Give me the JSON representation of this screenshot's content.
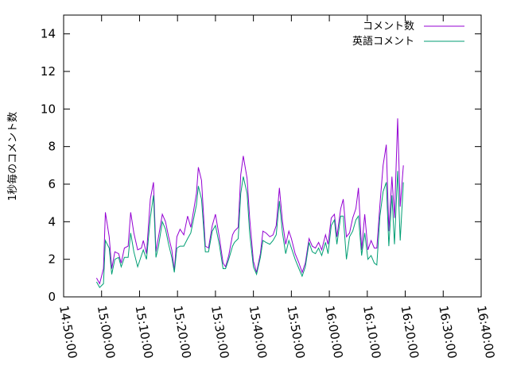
{
  "chart_data": {
    "type": "line",
    "title": "",
    "xlabel": "",
    "ylabel": "1秒毎のコメント数",
    "xlim": [
      "14:50:00",
      "16:40:00"
    ],
    "ylim": [
      0,
      15
    ],
    "x_ticks": [
      "14:50:00",
      "15:00:00",
      "15:10:00",
      "15:20:00",
      "15:30:00",
      "15:40:00",
      "15:50:00",
      "16:00:00",
      "16:10:00",
      "16:20:00",
      "16:30:00",
      "16:40:00"
    ],
    "y_ticks": [
      0,
      2,
      4,
      6,
      8,
      10,
      12,
      14
    ],
    "grid": false,
    "legend_position": "top-right",
    "series": [
      {
        "name": "コメント数",
        "color": "#9400d3",
        "points": [
          [
            "14:58:40",
            1.0
          ],
          [
            "14:59:30",
            0.7
          ],
          [
            "15:00:30",
            1.5
          ],
          [
            "15:01:00",
            4.5
          ],
          [
            "15:02:00",
            3.2
          ],
          [
            "15:02:40",
            1.5
          ],
          [
            "15:03:30",
            2.4
          ],
          [
            "15:04:30",
            2.3
          ],
          [
            "15:05:10",
            1.8
          ],
          [
            "15:06:00",
            2.6
          ],
          [
            "15:07:00",
            2.7
          ],
          [
            "15:07:40",
            4.5
          ],
          [
            "15:08:30",
            3.4
          ],
          [
            "15:09:30",
            2.5
          ],
          [
            "15:10:30",
            2.6
          ],
          [
            "15:11:00",
            3.0
          ],
          [
            "15:11:50",
            2.3
          ],
          [
            "15:12:50",
            5.2
          ],
          [
            "15:13:40",
            6.1
          ],
          [
            "15:14:20",
            2.4
          ],
          [
            "15:15:00",
            3.2
          ],
          [
            "15:16:00",
            4.4
          ],
          [
            "15:16:50",
            4.0
          ],
          [
            "15:17:40",
            3.2
          ],
          [
            "15:18:30",
            2.5
          ],
          [
            "15:19:10",
            1.4
          ],
          [
            "15:19:50",
            3.2
          ],
          [
            "15:20:40",
            3.6
          ],
          [
            "15:21:40",
            3.3
          ],
          [
            "15:22:40",
            4.3
          ],
          [
            "15:23:30",
            3.7
          ],
          [
            "15:25:00",
            5.5
          ],
          [
            "15:25:30",
            6.9
          ],
          [
            "15:26:20",
            6.2
          ],
          [
            "15:27:20",
            2.7
          ],
          [
            "15:28:10",
            2.6
          ],
          [
            "15:29:10",
            3.8
          ],
          [
            "15:30:00",
            4.4
          ],
          [
            "15:31:00",
            3.2
          ],
          [
            "15:32:00",
            1.8
          ],
          [
            "15:32:40",
            1.6
          ],
          [
            "15:33:30",
            2.2
          ],
          [
            "15:34:30",
            3.3
          ],
          [
            "15:35:00",
            3.5
          ],
          [
            "15:36:00",
            3.7
          ],
          [
            "15:36:40",
            6.5
          ],
          [
            "15:37:20",
            7.5
          ],
          [
            "15:38:20",
            6.3
          ],
          [
            "15:39:00",
            4.2
          ],
          [
            "15:40:00",
            1.9
          ],
          [
            "15:40:50",
            1.3
          ],
          [
            "15:41:50",
            2.3
          ],
          [
            "15:42:30",
            3.5
          ],
          [
            "15:43:20",
            3.4
          ],
          [
            "15:44:20",
            3.2
          ],
          [
            "15:45:10",
            3.3
          ],
          [
            "15:46:00",
            3.8
          ],
          [
            "15:46:50",
            5.8
          ],
          [
            "15:47:40",
            4.0
          ],
          [
            "15:48:30",
            2.8
          ],
          [
            "15:49:20",
            3.5
          ],
          [
            "15:50:00",
            3.1
          ],
          [
            "15:51:00",
            2.3
          ],
          [
            "15:52:00",
            1.8
          ],
          [
            "15:52:50",
            1.3
          ],
          [
            "15:53:40",
            1.8
          ],
          [
            "15:54:40",
            3.1
          ],
          [
            "15:55:30",
            2.7
          ],
          [
            "15:56:20",
            2.6
          ],
          [
            "15:57:10",
            2.9
          ],
          [
            "15:58:00",
            2.5
          ],
          [
            "15:59:00",
            3.3
          ],
          [
            "15:59:40",
            2.8
          ],
          [
            "16:00:30",
            4.2
          ],
          [
            "16:01:20",
            4.4
          ],
          [
            "16:02:00",
            3.2
          ],
          [
            "16:03:00",
            4.7
          ],
          [
            "16:03:40",
            5.2
          ],
          [
            "16:04:30",
            3.2
          ],
          [
            "16:05:20",
            3.4
          ],
          [
            "16:06:10",
            4.2
          ],
          [
            "16:07:00",
            4.7
          ],
          [
            "16:07:40",
            5.8
          ],
          [
            "16:08:30",
            2.5
          ],
          [
            "16:09:20",
            4.4
          ],
          [
            "16:10:10",
            2.5
          ],
          [
            "16:11:00",
            3.0
          ],
          [
            "16:11:50",
            2.6
          ],
          [
            "16:12:30",
            2.6
          ],
          [
            "16:13:20",
            4.9
          ],
          [
            "16:14:10",
            7.0
          ],
          [
            "16:15:00",
            8.1
          ],
          [
            "16:15:40",
            3.5
          ],
          [
            "16:16:30",
            6.4
          ],
          [
            "16:17:10",
            4.2
          ],
          [
            "16:18:00",
            9.5
          ],
          [
            "16:18:40",
            4.8
          ],
          [
            "16:19:30",
            7.0
          ]
        ]
      },
      {
        "name": "英語コメント",
        "color": "#009e73",
        "points": [
          [
            "14:58:40",
            0.8
          ],
          [
            "14:59:30",
            0.5
          ],
          [
            "15:00:30",
            0.7
          ],
          [
            "15:01:00",
            3.0
          ],
          [
            "15:02:00",
            2.6
          ],
          [
            "15:02:40",
            1.2
          ],
          [
            "15:03:30",
            2.0
          ],
          [
            "15:04:30",
            2.1
          ],
          [
            "15:05:10",
            1.6
          ],
          [
            "15:06:00",
            2.1
          ],
          [
            "15:07:00",
            2.1
          ],
          [
            "15:07:40",
            3.4
          ],
          [
            "15:08:30",
            2.4
          ],
          [
            "15:09:30",
            1.6
          ],
          [
            "15:10:30",
            2.2
          ],
          [
            "15:11:00",
            2.5
          ],
          [
            "15:11:50",
            2.0
          ],
          [
            "15:12:50",
            4.2
          ],
          [
            "15:13:40",
            5.4
          ],
          [
            "15:14:20",
            2.1
          ],
          [
            "15:15:00",
            2.7
          ],
          [
            "15:16:00",
            4.0
          ],
          [
            "15:16:50",
            3.6
          ],
          [
            "15:17:40",
            2.8
          ],
          [
            "15:18:30",
            2.1
          ],
          [
            "15:19:10",
            1.3
          ],
          [
            "15:19:50",
            2.6
          ],
          [
            "15:20:40",
            2.7
          ],
          [
            "15:21:40",
            2.7
          ],
          [
            "15:22:40",
            3.1
          ],
          [
            "15:23:30",
            3.4
          ],
          [
            "15:25:00",
            4.9
          ],
          [
            "15:25:30",
            5.9
          ],
          [
            "15:26:20",
            5.2
          ],
          [
            "15:27:20",
            2.4
          ],
          [
            "15:28:10",
            2.4
          ],
          [
            "15:29:10",
            3.5
          ],
          [
            "15:30:00",
            3.8
          ],
          [
            "15:31:00",
            2.8
          ],
          [
            "15:32:00",
            1.5
          ],
          [
            "15:32:40",
            1.5
          ],
          [
            "15:33:30",
            2.0
          ],
          [
            "15:34:30",
            2.7
          ],
          [
            "15:35:00",
            2.9
          ],
          [
            "15:36:00",
            3.1
          ],
          [
            "15:36:40",
            5.5
          ],
          [
            "15:37:20",
            6.4
          ],
          [
            "15:38:20",
            5.5
          ],
          [
            "15:39:00",
            3.4
          ],
          [
            "15:40:00",
            1.6
          ],
          [
            "15:40:50",
            1.2
          ],
          [
            "15:41:50",
            2.1
          ],
          [
            "15:42:30",
            3.0
          ],
          [
            "15:43:20",
            2.9
          ],
          [
            "15:44:20",
            2.8
          ],
          [
            "15:45:10",
            3.0
          ],
          [
            "15:46:00",
            3.3
          ],
          [
            "15:46:50",
            5.1
          ],
          [
            "15:47:40",
            3.4
          ],
          [
            "15:48:30",
            2.3
          ],
          [
            "15:49:20",
            3.0
          ],
          [
            "15:50:00",
            2.6
          ],
          [
            "15:51:00",
            2.0
          ],
          [
            "15:52:00",
            1.5
          ],
          [
            "15:52:50",
            1.1
          ],
          [
            "15:53:40",
            1.6
          ],
          [
            "15:54:40",
            2.9
          ],
          [
            "15:55:30",
            2.4
          ],
          [
            "15:56:20",
            2.3
          ],
          [
            "15:57:10",
            2.6
          ],
          [
            "15:58:00",
            2.2
          ],
          [
            "15:59:00",
            2.9
          ],
          [
            "15:59:40",
            2.3
          ],
          [
            "16:00:30",
            3.8
          ],
          [
            "16:01:20",
            4.1
          ],
          [
            "16:02:00",
            2.8
          ],
          [
            "16:03:00",
            4.3
          ],
          [
            "16:03:40",
            4.3
          ],
          [
            "16:04:30",
            2.0
          ],
          [
            "16:05:20",
            3.2
          ],
          [
            "16:06:10",
            3.5
          ],
          [
            "16:07:00",
            4.1
          ],
          [
            "16:07:40",
            4.3
          ],
          [
            "16:08:30",
            2.2
          ],
          [
            "16:09:20",
            3.4
          ],
          [
            "16:10:10",
            2.0
          ],
          [
            "16:11:00",
            2.2
          ],
          [
            "16:11:50",
            1.8
          ],
          [
            "16:12:30",
            1.7
          ],
          [
            "16:13:20",
            4.3
          ],
          [
            "16:14:10",
            5.6
          ],
          [
            "16:15:00",
            6.1
          ],
          [
            "16:15:40",
            2.7
          ],
          [
            "16:16:30",
            5.4
          ],
          [
            "16:17:10",
            2.8
          ],
          [
            "16:18:00",
            6.7
          ],
          [
            "16:18:40",
            3.0
          ],
          [
            "16:19:30",
            6.1
          ]
        ]
      }
    ]
  }
}
